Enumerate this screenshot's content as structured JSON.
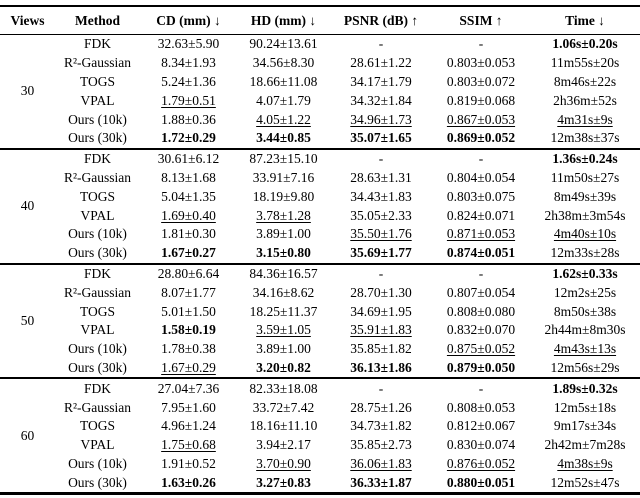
{
  "table": {
    "headers": [
      "Views",
      "Method",
      "CD (mm) ↓",
      "HD (mm) ↓",
      "PSNR (dB) ↑",
      "SSIM ↑",
      "Time ↓"
    ],
    "style_legend": {
      "n": "normal",
      "b": "bold",
      "u": "underline"
    },
    "groups": [
      {
        "views": "30",
        "rows": [
          {
            "method": "FDK",
            "cells": [
              [
                "32.63±5.90",
                "n"
              ],
              [
                "90.24±13.61",
                "n"
              ],
              [
                "-",
                "n"
              ],
              [
                "-",
                "n"
              ],
              [
                "1.06s±0.20s",
                "b"
              ]
            ]
          },
          {
            "method": "R²-Gaussian",
            "cells": [
              [
                "8.34±1.93",
                "n"
              ],
              [
                "34.56±8.30",
                "n"
              ],
              [
                "28.61±1.22",
                "n"
              ],
              [
                "0.803±0.053",
                "n"
              ],
              [
                "11m55s±20s",
                "n"
              ]
            ]
          },
          {
            "method": "TOGS",
            "cells": [
              [
                "5.24±1.36",
                "n"
              ],
              [
                "18.66±11.08",
                "n"
              ],
              [
                "34.17±1.79",
                "n"
              ],
              [
                "0.803±0.072",
                "n"
              ],
              [
                "8m46s±22s",
                "n"
              ]
            ]
          },
          {
            "method": "VPAL",
            "cells": [
              [
                "1.79±0.51",
                "u"
              ],
              [
                "4.07±1.79",
                "n"
              ],
              [
                "34.32±1.84",
                "n"
              ],
              [
                "0.819±0.068",
                "n"
              ],
              [
                "2h36m±52s",
                "n"
              ]
            ]
          },
          {
            "method": "Ours (10k)",
            "cells": [
              [
                "1.88±0.36",
                "n"
              ],
              [
                "4.05±1.22",
                "u"
              ],
              [
                "34.96±1.73",
                "u"
              ],
              [
                "0.867±0.053",
                "u"
              ],
              [
                "4m31s±9s",
                "u"
              ]
            ]
          },
          {
            "method": "Ours (30k)",
            "cells": [
              [
                "1.72±0.29",
                "b"
              ],
              [
                "3.44±0.85",
                "b"
              ],
              [
                "35.07±1.65",
                "b"
              ],
              [
                "0.869±0.052",
                "b"
              ],
              [
                "12m38s±37s",
                "n"
              ]
            ]
          }
        ]
      },
      {
        "views": "40",
        "rows": [
          {
            "method": "FDK",
            "cells": [
              [
                "30.61±6.12",
                "n"
              ],
              [
                "87.23±15.10",
                "n"
              ],
              [
                "-",
                "n"
              ],
              [
                "-",
                "n"
              ],
              [
                "1.36s±0.24s",
                "b"
              ]
            ]
          },
          {
            "method": "R²-Gaussian",
            "cells": [
              [
                "8.13±1.68",
                "n"
              ],
              [
                "33.91±7.16",
                "n"
              ],
              [
                "28.63±1.31",
                "n"
              ],
              [
                "0.804±0.054",
                "n"
              ],
              [
                "11m50s±27s",
                "n"
              ]
            ]
          },
          {
            "method": "TOGS",
            "cells": [
              [
                "5.04±1.35",
                "n"
              ],
              [
                "18.19±9.80",
                "n"
              ],
              [
                "34.43±1.83",
                "n"
              ],
              [
                "0.803±0.075",
                "n"
              ],
              [
                "8m49s±39s",
                "n"
              ]
            ]
          },
          {
            "method": "VPAL",
            "cells": [
              [
                "1.69±0.40",
                "u"
              ],
              [
                "3.78±1.28",
                "u"
              ],
              [
                "35.05±2.33",
                "n"
              ],
              [
                "0.824±0.071",
                "n"
              ],
              [
                "2h38m±3m54s",
                "n"
              ]
            ]
          },
          {
            "method": "Ours (10k)",
            "cells": [
              [
                "1.81±0.30",
                "n"
              ],
              [
                "3.89±1.00",
                "n"
              ],
              [
                "35.50±1.76",
                "u"
              ],
              [
                "0.871±0.053",
                "u"
              ],
              [
                "4m40s±10s",
                "u"
              ]
            ]
          },
          {
            "method": "Ours (30k)",
            "cells": [
              [
                "1.67±0.27",
                "b"
              ],
              [
                "3.15±0.80",
                "b"
              ],
              [
                "35.69±1.77",
                "b"
              ],
              [
                "0.874±0.051",
                "b"
              ],
              [
                "12m33s±28s",
                "n"
              ]
            ]
          }
        ]
      },
      {
        "views": "50",
        "rows": [
          {
            "method": "FDK",
            "cells": [
              [
                "28.80±6.64",
                "n"
              ],
              [
                "84.36±16.57",
                "n"
              ],
              [
                "-",
                "n"
              ],
              [
                "-",
                "n"
              ],
              [
                "1.62s±0.33s",
                "b"
              ]
            ]
          },
          {
            "method": "R²-Gaussian",
            "cells": [
              [
                "8.07±1.77",
                "n"
              ],
              [
                "34.16±8.62",
                "n"
              ],
              [
                "28.70±1.30",
                "n"
              ],
              [
                "0.807±0.054",
                "n"
              ],
              [
                "12m2s±25s",
                "n"
              ]
            ]
          },
          {
            "method": "TOGS",
            "cells": [
              [
                "5.01±1.50",
                "n"
              ],
              [
                "18.25±11.37",
                "n"
              ],
              [
                "34.69±1.95",
                "n"
              ],
              [
                "0.808±0.080",
                "n"
              ],
              [
                "8m50s±38s",
                "n"
              ]
            ]
          },
          {
            "method": "VPAL",
            "cells": [
              [
                "1.58±0.19",
                "b"
              ],
              [
                "3.59±1.05",
                "u"
              ],
              [
                "35.91±1.83",
                "u"
              ],
              [
                "0.832±0.070",
                "n"
              ],
              [
                "2h44m±8m30s",
                "n"
              ]
            ]
          },
          {
            "method": "Ours (10k)",
            "cells": [
              [
                "1.78±0.38",
                "n"
              ],
              [
                "3.89±1.00",
                "n"
              ],
              [
                "35.85±1.82",
                "n"
              ],
              [
                "0.875±0.052",
                "u"
              ],
              [
                "4m43s±13s",
                "u"
              ]
            ]
          },
          {
            "method": "Ours (30k)",
            "cells": [
              [
                "1.67±0.29",
                "u"
              ],
              [
                "3.20±0.82",
                "b"
              ],
              [
                "36.13±1.86",
                "b"
              ],
              [
                "0.879±0.050",
                "b"
              ],
              [
                "12m56s±29s",
                "n"
              ]
            ]
          }
        ]
      },
      {
        "views": "60",
        "rows": [
          {
            "method": "FDK",
            "cells": [
              [
                "27.04±7.36",
                "n"
              ],
              [
                "82.33±18.08",
                "n"
              ],
              [
                "-",
                "n"
              ],
              [
                "-",
                "n"
              ],
              [
                "1.89s±0.32s",
                "b"
              ]
            ]
          },
          {
            "method": "R²-Gaussian",
            "cells": [
              [
                "7.95±1.60",
                "n"
              ],
              [
                "33.72±7.42",
                "n"
              ],
              [
                "28.75±1.26",
                "n"
              ],
              [
                "0.808±0.053",
                "n"
              ],
              [
                "12m5s±18s",
                "n"
              ]
            ]
          },
          {
            "method": "TOGS",
            "cells": [
              [
                "4.96±1.24",
                "n"
              ],
              [
                "18.16±11.10",
                "n"
              ],
              [
                "34.73±1.82",
                "n"
              ],
              [
                "0.812±0.067",
                "n"
              ],
              [
                "9m17s±34s",
                "n"
              ]
            ]
          },
          {
            "method": "VPAL",
            "cells": [
              [
                "1.75±0.68",
                "u"
              ],
              [
                "3.94±2.17",
                "n"
              ],
              [
                "35.85±2.73",
                "n"
              ],
              [
                "0.830±0.074",
                "n"
              ],
              [
                "2h42m±7m28s",
                "n"
              ]
            ]
          },
          {
            "method": "Ours (10k)",
            "cells": [
              [
                "1.91±0.52",
                "n"
              ],
              [
                "3.70±0.90",
                "u"
              ],
              [
                "36.06±1.83",
                "u"
              ],
              [
                "0.876±0.052",
                "u"
              ],
              [
                "4m38s±9s",
                "u"
              ]
            ]
          },
          {
            "method": "Ours (30k)",
            "cells": [
              [
                "1.63±0.26",
                "b"
              ],
              [
                "3.27±0.83",
                "b"
              ],
              [
                "36.33±1.87",
                "b"
              ],
              [
                "0.880±0.051",
                "b"
              ],
              [
                "12m52s±47s",
                "n"
              ]
            ]
          }
        ]
      }
    ]
  }
}
